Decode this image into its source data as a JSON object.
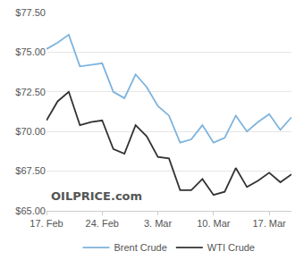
{
  "chart_data": {
    "type": "line",
    "categories": [
      "17. Feb",
      null,
      null,
      null,
      null,
      "24. Feb",
      null,
      null,
      null,
      null,
      "3. Mar",
      null,
      null,
      null,
      null,
      "10. Mar",
      null,
      null,
      null,
      null,
      "17. Mar",
      null,
      null
    ],
    "series": [
      {
        "name": "Brent Crude",
        "color": "#7db3dd",
        "values": [
          75.2,
          75.6,
          76.1,
          74.1,
          74.2,
          74.3,
          72.5,
          72.1,
          73.6,
          72.8,
          71.6,
          71.0,
          69.3,
          69.5,
          70.4,
          69.3,
          69.6,
          71.0,
          70.0,
          70.6,
          71.1,
          70.1,
          70.9
        ]
      },
      {
        "name": "WTI Crude",
        "color": "#333333",
        "values": [
          70.7,
          71.9,
          72.5,
          70.4,
          70.6,
          70.7,
          68.9,
          68.6,
          70.4,
          69.7,
          68.4,
          68.3,
          66.3,
          66.3,
          67.0,
          66.0,
          66.2,
          67.7,
          66.5,
          66.9,
          67.4,
          66.8,
          67.3
        ]
      }
    ],
    "ylim": [
      65,
      77.5
    ],
    "yticks": [
      {
        "value": 65,
        "label": "$65.00"
      },
      {
        "value": 67.5,
        "label": "$67.50"
      },
      {
        "value": 70,
        "label": "$70.00"
      },
      {
        "value": 72.5,
        "label": "$72.50"
      },
      {
        "value": 75,
        "label": "$75.00"
      },
      {
        "value": 77.5,
        "label": "$77.50"
      }
    ],
    "grid": true,
    "legend": "bottom",
    "annotations": [
      {
        "text": "OILPRICE.com"
      }
    ]
  }
}
